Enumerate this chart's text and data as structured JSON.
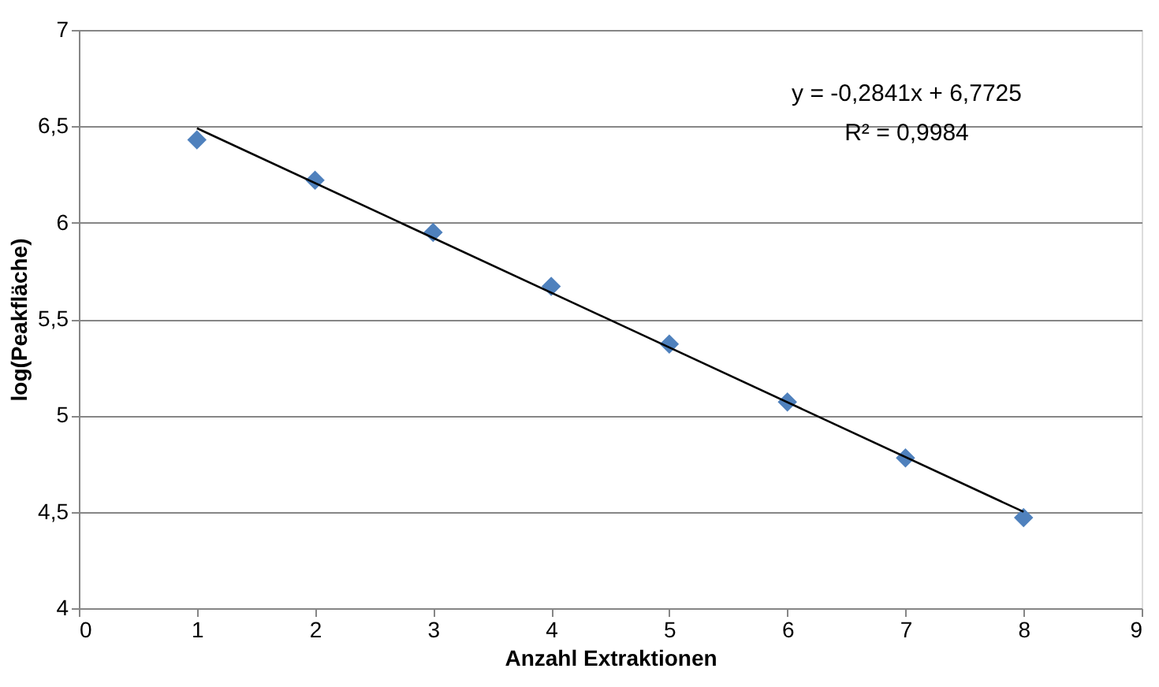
{
  "chart_data": {
    "type": "scatter",
    "xlabel": "Anzahl Extraktionen",
    "ylabel": "log(Peakfläche)",
    "xlim": [
      0,
      9
    ],
    "xticks": [
      0,
      1,
      2,
      3,
      4,
      5,
      6,
      7,
      8,
      9
    ],
    "ylim": [
      4,
      7
    ],
    "yticks": [
      {
        "value": 4,
        "label": "4"
      },
      {
        "value": 4.5,
        "label": "4,5"
      },
      {
        "value": 5,
        "label": "5"
      },
      {
        "value": 5.5,
        "label": "5,5"
      },
      {
        "value": 6,
        "label": "6"
      },
      {
        "value": 6.5,
        "label": "6,5"
      },
      {
        "value": 7,
        "label": "7"
      }
    ],
    "grid": "y",
    "marker": "diamond",
    "series": [
      {
        "color": "#4f81bd",
        "x": [
          1,
          2,
          3,
          4,
          5,
          6,
          7,
          8
        ],
        "values": [
          6.43,
          6.22,
          5.95,
          5.67,
          5.37,
          5.07,
          4.78,
          4.47
        ]
      },
      {
        "type": "line",
        "color": "#000000",
        "marker": "none",
        "x": [
          1,
          8
        ],
        "values": [
          6.49,
          4.5
        ]
      }
    ],
    "annotations": [
      "y = -0,2841x + 6,7725",
      "R² = 0,9984"
    ]
  }
}
